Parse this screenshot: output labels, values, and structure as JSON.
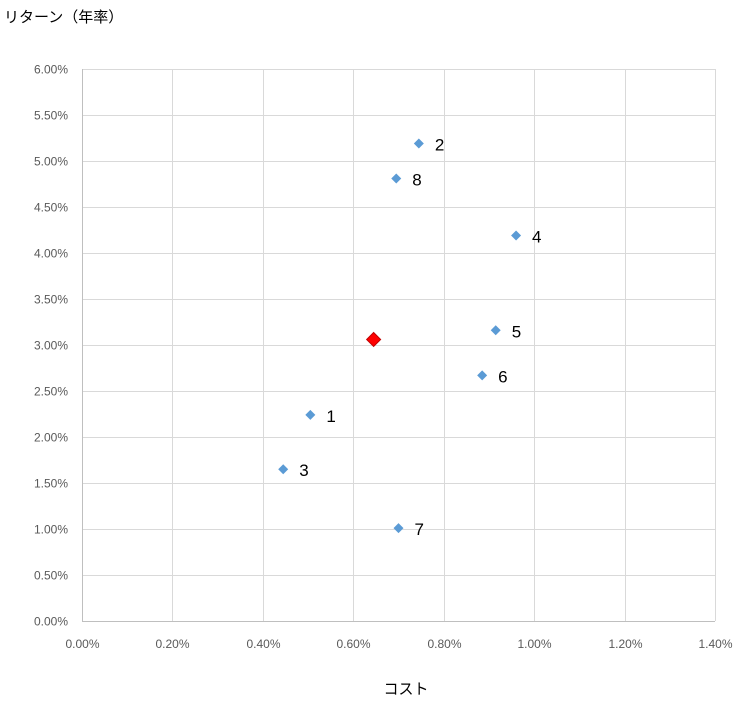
{
  "chart_data": {
    "type": "scatter",
    "title": "",
    "ylabel": "リターン（年率）",
    "xlabel": "コスト",
    "xlim": [
      0,
      0.014
    ],
    "ylim": [
      0,
      0.06
    ],
    "xticks": [
      0,
      0.002,
      0.004,
      0.006,
      0.008,
      0.01,
      0.012,
      0.014
    ],
    "yticks": [
      0,
      0.005,
      0.01,
      0.015,
      0.02,
      0.025,
      0.03,
      0.035,
      0.04,
      0.045,
      0.05,
      0.055,
      0.06
    ],
    "xtick_labels": [
      "0.00%",
      "0.20%",
      "0.40%",
      "0.60%",
      "0.80%",
      "1.00%",
      "1.20%",
      "1.40%"
    ],
    "ytick_labels": [
      "0.00%",
      "0.50%",
      "1.00%",
      "1.50%",
      "2.00%",
      "2.50%",
      "3.00%",
      "3.50%",
      "4.00%",
      "4.50%",
      "5.00%",
      "5.50%",
      "6.00%"
    ],
    "grid": true,
    "series": [
      {
        "color": "#5b9bd5",
        "marker": "diamond",
        "points": [
          {
            "label": "1",
            "x": 0.00505,
            "y": 0.0224
          },
          {
            "label": "2",
            "x": 0.00745,
            "y": 0.0519
          },
          {
            "label": "3",
            "x": 0.00445,
            "y": 0.0165
          },
          {
            "label": "4",
            "x": 0.0096,
            "y": 0.0419
          },
          {
            "label": "5",
            "x": 0.00915,
            "y": 0.0316
          },
          {
            "label": "6",
            "x": 0.00885,
            "y": 0.0267
          },
          {
            "label": "7",
            "x": 0.007,
            "y": 0.0101
          },
          {
            "label": "8",
            "x": 0.00695,
            "y": 0.0481
          }
        ]
      },
      {
        "color": "#ff0000",
        "marker": "diamond",
        "points": [
          {
            "label": "",
            "x": 0.00645,
            "y": 0.0306
          }
        ]
      }
    ]
  }
}
